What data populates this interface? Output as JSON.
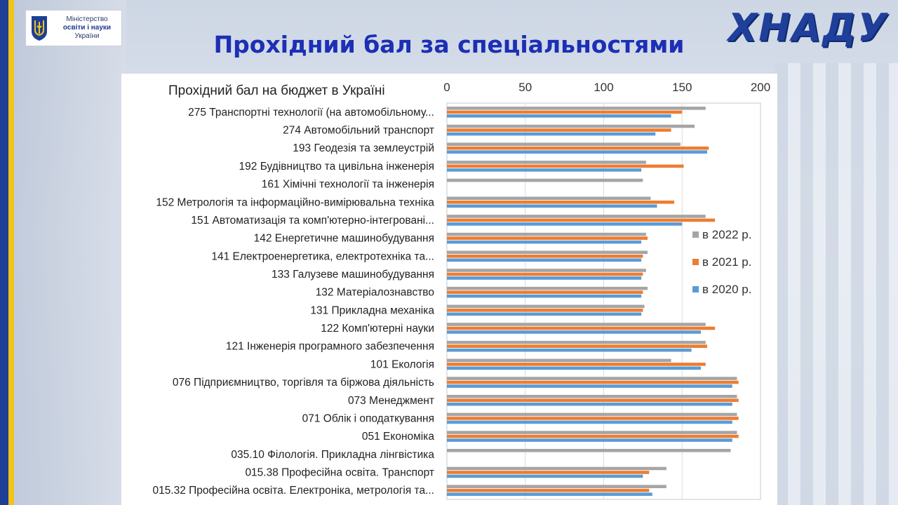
{
  "page": {
    "title": "Прохідний бал за спеціальностями",
    "ministry": {
      "line1": "Міністерство",
      "line2": "освіти і науки",
      "line3": "України"
    },
    "logo": "ХНАДУ"
  },
  "colors": {
    "title": "#1c2fb5",
    "series_2022": "#a5a5a5",
    "series_2021": "#ed7d31",
    "series_2020": "#5b9bd5",
    "logo": "#1f3f9a"
  },
  "chart_data": {
    "type": "bar",
    "orientation": "horizontal",
    "title": "Прохідний бал на бюджет в Україні",
    "xlim": [
      0,
      200
    ],
    "ticks": [
      0,
      50,
      100,
      150,
      200
    ],
    "axis_position": "top",
    "grid": true,
    "legend_position": "right",
    "categories": [
      "275 Транспортні технології (на автомобільному...",
      "274 Автомобільний транспорт",
      "193 Геодезія та землеустрій",
      "192 Будівництво та цивільна інженерія",
      "161 Хімічні технології та інженерія",
      "152 Метрологія та інформаційно-вимірювальна техніка",
      "151 Автоматизація та комп'ютерно-інтегровані...",
      "142 Енергетичне машинобудування",
      "141 Електроенергетика, електротехніка та...",
      "133 Галузеве машинобудування",
      "132 Матеріалознавство",
      "131 Прикладна механіка",
      "122 Комп'ютерні науки",
      "121 Інженерія програмного забезпечення",
      "101 Екологія",
      "076 Підприємництво, торгівля та біржова діяльність",
      "073 Менеджмент",
      "071 Облік і оподаткування",
      "051 Економіка",
      "035.10 Філологія. Прикладна лінгвістика",
      "015.38 Професійна освіта. Транспорт",
      "015.32 Професійна освіта. Електроніка, метрологія та..."
    ],
    "series": [
      {
        "name": "в 2022 р.",
        "color": "#a5a5a5",
        "values": [
          165,
          158,
          149,
          127,
          125,
          130,
          165,
          127,
          128,
          127,
          128,
          126,
          165,
          165,
          143,
          185,
          185,
          185,
          185,
          181,
          140,
          140
        ]
      },
      {
        "name": "в 2021 р.",
        "color": "#ed7d31",
        "values": [
          150,
          143,
          167,
          151,
          null,
          145,
          171,
          128,
          125,
          125,
          125,
          125,
          171,
          166,
          165,
          186,
          186,
          186,
          186,
          null,
          129,
          129
        ]
      },
      {
        "name": "в 2020 р.",
        "color": "#5b9bd5",
        "values": [
          143,
          133,
          166,
          124,
          null,
          134,
          150,
          124,
          124,
          124,
          124,
          124,
          162,
          156,
          162,
          182,
          182,
          182,
          182,
          null,
          125,
          131
        ]
      }
    ]
  }
}
